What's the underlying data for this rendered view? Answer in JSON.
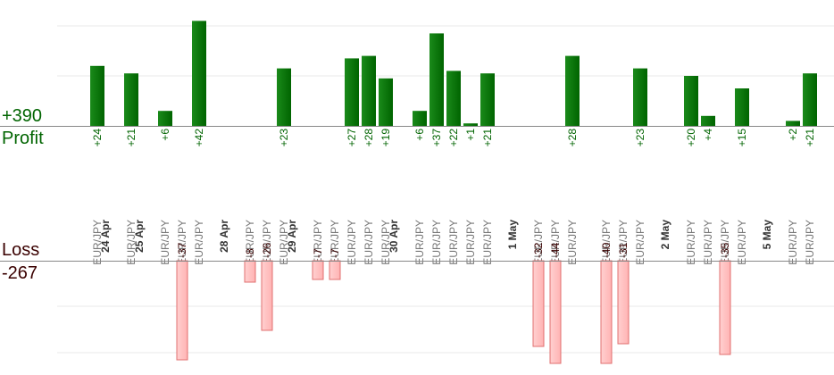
{
  "profit": {
    "total": "+390",
    "label": "Profit"
  },
  "loss": {
    "total": "-267",
    "label": "Loss"
  },
  "chart_data": {
    "type": "bar",
    "pair": "EUR/JPY",
    "trades": [
      {
        "pnl": 24
      },
      {
        "date": "24 Apr"
      },
      {
        "pnl": 21
      },
      {
        "date": "25 Apr"
      },
      {
        "pnl": 6
      },
      {
        "pnl": -37
      },
      {
        "pnl": 42
      },
      {},
      {
        "date": "28 Apr"
      },
      {
        "pnl": -8
      },
      {
        "pnl": -26
      },
      {
        "pnl": 23
      },
      {
        "date": "29 Apr"
      },
      {
        "pnl": -7
      },
      {
        "pnl": -7
      },
      {
        "pnl": 27
      },
      {
        "pnl": 28
      },
      {
        "pnl": 19
      },
      {
        "date": "30 Apr"
      },
      {
        "pnl": 6
      },
      {
        "pnl": 37
      },
      {
        "pnl": 22
      },
      {
        "pnl": 1
      },
      {
        "pnl": 21
      },
      {},
      {
        "date": "1 May"
      },
      {
        "pnl": -32
      },
      {
        "pnl": -44
      },
      {
        "pnl": 28
      },
      {},
      {
        "pnl": -40
      },
      {
        "pnl": -31
      },
      {
        "pnl": 23
      },
      {},
      {
        "date": "2 May"
      },
      {
        "pnl": 20
      },
      {
        "pnl": 4
      },
      {
        "pnl": -35
      },
      {
        "pnl": 15
      },
      {},
      {
        "date": "5 May"
      },
      {
        "pnl": 2
      },
      {
        "pnl": 21
      }
    ],
    "ylim_profit": [
      0,
      50
    ],
    "ylim_loss": [
      -45,
      0
    ],
    "grid": true
  },
  "colors": {
    "profit_bar": "#006400",
    "profit_bar_light": "#1a8a1a",
    "loss_bar": "#ffb3b3",
    "loss_border": "#e07070",
    "profit_text": "#006400",
    "loss_text": "#3a0000",
    "pair_text": "#777777",
    "date_text": "#333333",
    "grid": "#e8e8e8",
    "axis": "#888888"
  }
}
